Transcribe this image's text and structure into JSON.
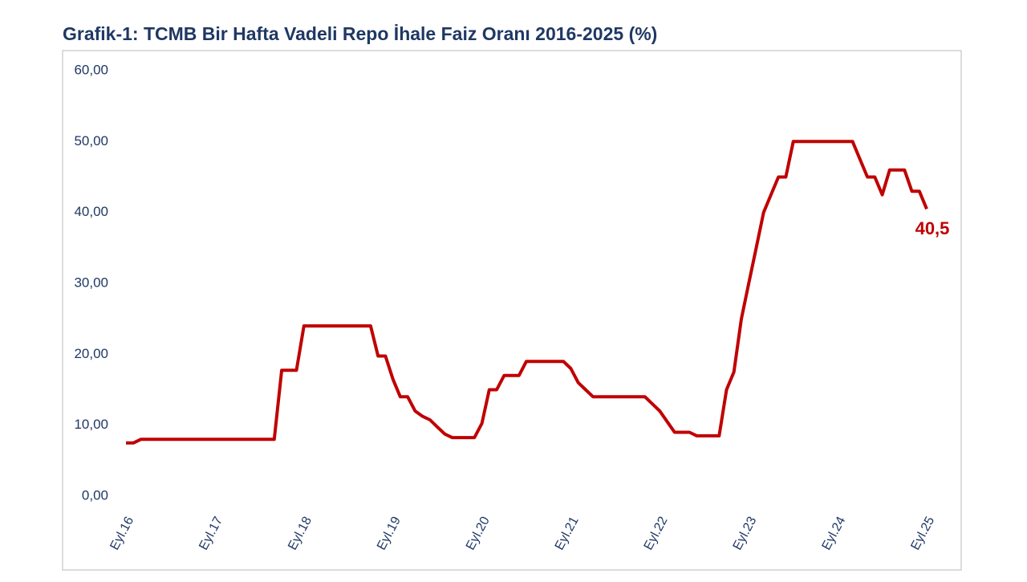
{
  "chart_data": {
    "type": "line",
    "title": "Grafik-1: TCMB Bir Hafta Vadeli Repo İhale Faiz Oranı 2016-2025 (%)",
    "categories": [
      "Eyl.16",
      null,
      null,
      null,
      null,
      null,
      null,
      null,
      null,
      null,
      null,
      null,
      "Eyl.17",
      null,
      null,
      null,
      null,
      null,
      null,
      null,
      null,
      null,
      null,
      null,
      "Eyl.18",
      null,
      null,
      null,
      null,
      null,
      null,
      null,
      null,
      null,
      null,
      null,
      "Eyl.19",
      null,
      null,
      null,
      null,
      null,
      null,
      null,
      null,
      null,
      null,
      null,
      "Eyl.20",
      null,
      null,
      null,
      null,
      null,
      null,
      null,
      null,
      null,
      null,
      null,
      "Eyl.21",
      null,
      null,
      null,
      null,
      null,
      null,
      null,
      null,
      null,
      null,
      null,
      "Eyl.22",
      null,
      null,
      null,
      null,
      null,
      null,
      null,
      null,
      null,
      null,
      null,
      "Eyl.23",
      null,
      null,
      null,
      null,
      null,
      null,
      null,
      null,
      null,
      null,
      null,
      "Eyl.24",
      null,
      null,
      null,
      null,
      null,
      null,
      null,
      null,
      null,
      null,
      null,
      "Eyl.25"
    ],
    "values": [
      7.5,
      7.5,
      8,
      8,
      8,
      8,
      8,
      8,
      8,
      8,
      8,
      8,
      8,
      8,
      8,
      8,
      8,
      8,
      8,
      8,
      8,
      17.75,
      17.75,
      17.75,
      24,
      24,
      24,
      24,
      24,
      24,
      24,
      24,
      24,
      24,
      19.75,
      19.75,
      16.5,
      14,
      14,
      12,
      11.25,
      10.75,
      9.75,
      8.75,
      8.25,
      8.25,
      8.25,
      8.25,
      10.25,
      15,
      15,
      17,
      17,
      17,
      19,
      19,
      19,
      19,
      19,
      19,
      18,
      16,
      15,
      14,
      14,
      14,
      14,
      14,
      14,
      14,
      14,
      13,
      12,
      10.5,
      9,
      9,
      9,
      8.5,
      8.5,
      8.5,
      8.5,
      15,
      17.5,
      25,
      30,
      35,
      40,
      42.5,
      45,
      45,
      50,
      50,
      50,
      50,
      50,
      50,
      50,
      50,
      50,
      47.5,
      45,
      45,
      42.5,
      46,
      46,
      46,
      43,
      43,
      40.5
    ],
    "value_labels": [
      null,
      null,
      null,
      null,
      null,
      null,
      null,
      null,
      null,
      null,
      null,
      null,
      null,
      null,
      null,
      null,
      null,
      null,
      null,
      null,
      null,
      null,
      null,
      null,
      null,
      null,
      null,
      null,
      null,
      null,
      null,
      null,
      null,
      null,
      null,
      null,
      null,
      null,
      null,
      null,
      null,
      null,
      null,
      null,
      null,
      null,
      null,
      null,
      null,
      null,
      null,
      null,
      null,
      null,
      null,
      null,
      null,
      null,
      null,
      null,
      null,
      null,
      null,
      null,
      null,
      null,
      null,
      null,
      null,
      null,
      null,
      null,
      null,
      null,
      null,
      null,
      null,
      null,
      null,
      null,
      null,
      null,
      null,
      null,
      null,
      null,
      null,
      null,
      null,
      null,
      null,
      null,
      null,
      null,
      null,
      null,
      null,
      null,
      null,
      null,
      null,
      null,
      null,
      null,
      null,
      null,
      null,
      null,
      "40,5"
    ],
    "color": "#c00000",
    "ylim": [
      0,
      60
    ],
    "yticks": [
      {
        "value": 0,
        "label": "0,00"
      },
      {
        "value": 10,
        "label": "10,00"
      },
      {
        "value": 20,
        "label": "20,00"
      },
      {
        "value": 30,
        "label": "30,00"
      },
      {
        "value": 40,
        "label": "40,00"
      },
      {
        "value": 50,
        "label": "50,00"
      },
      {
        "value": 60,
        "label": "60,00"
      }
    ],
    "grid": false
  }
}
